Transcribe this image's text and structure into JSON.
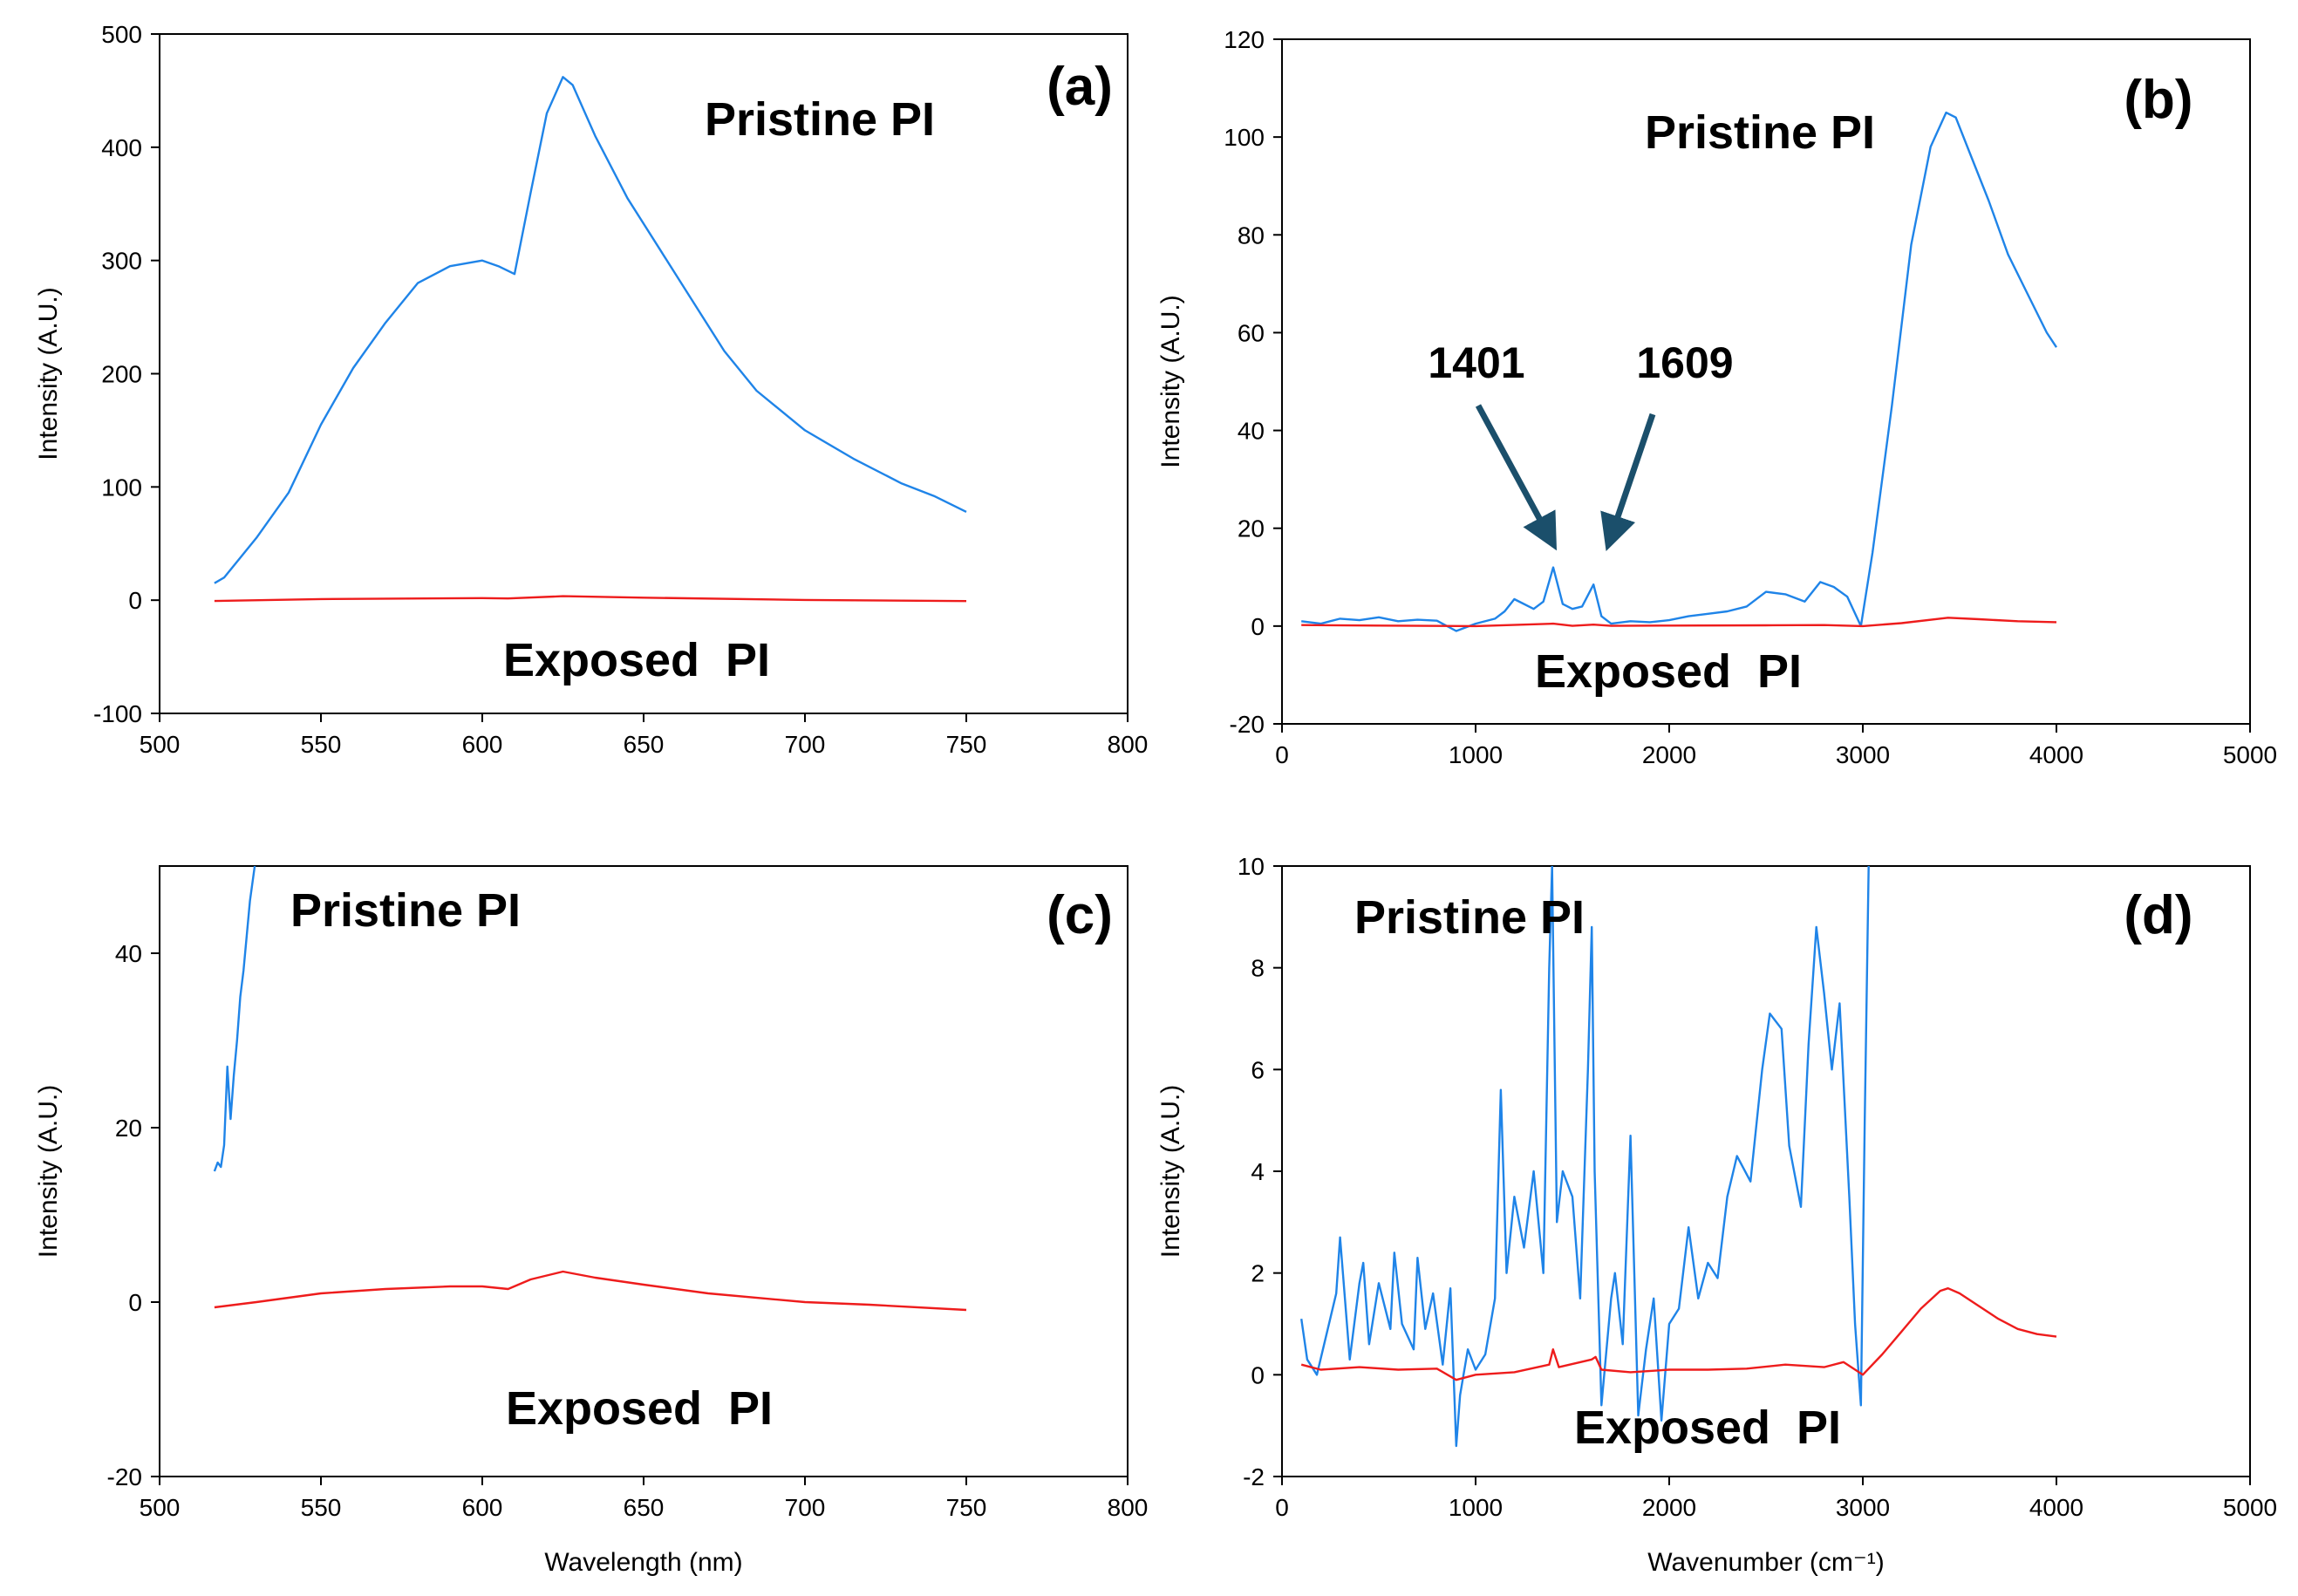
{
  "figure": {
    "colors": {
      "pristine": "#1f84e8",
      "exposed": "#ee1c1c",
      "arrow": "#1b4f6b"
    }
  },
  "chart_data": [
    {
      "panel": "(a)",
      "type": "line",
      "xlim": [
        500,
        800
      ],
      "ylim": [
        -100,
        500
      ],
      "xticks": [
        500,
        550,
        600,
        650,
        700,
        750,
        800
      ],
      "yticks": [
        -100,
        0,
        100,
        200,
        300,
        400,
        500
      ],
      "xlabel": "",
      "ylabel": "Intensity (A.U.)",
      "annotations": [
        "Pristine PI",
        "Exposed  PI"
      ],
      "series": [
        {
          "name": "Pristine PI",
          "color": "#1f84e8",
          "x": [
            517,
            520,
            530,
            540,
            550,
            560,
            570,
            580,
            590,
            600,
            605,
            610,
            615,
            620,
            625,
            628,
            635,
            645,
            655,
            665,
            675,
            685,
            700,
            715,
            730,
            740,
            750
          ],
          "y": [
            15,
            20,
            55,
            95,
            155,
            205,
            245,
            280,
            295,
            300,
            295,
            288,
            360,
            430,
            462,
            455,
            410,
            355,
            310,
            265,
            220,
            185,
            150,
            125,
            103,
            92,
            78
          ]
        },
        {
          "name": "Exposed PI",
          "color": "#ee1c1c",
          "x": [
            517,
            550,
            600,
            608,
            625,
            650,
            700,
            750
          ],
          "y": [
            -0.7,
            1.0,
            1.8,
            1.5,
            3.5,
            2.2,
            0.2,
            -0.8
          ]
        }
      ]
    },
    {
      "panel": "(b)",
      "type": "line",
      "xlim": [
        0,
        5000
      ],
      "ylim": [
        -20,
        120
      ],
      "xticks": [
        0,
        1000,
        2000,
        3000,
        4000,
        5000
      ],
      "yticks": [
        -20,
        0,
        20,
        40,
        60,
        80,
        100,
        120
      ],
      "xlabel": "",
      "ylabel": "Intensity (A.U.)",
      "annotations": [
        "Pristine PI",
        "Exposed  PI"
      ],
      "peaks": [
        {
          "label": "1401",
          "x": 1401
        },
        {
          "label": "1609",
          "x": 1609
        }
      ],
      "series": [
        {
          "name": "Pristine PI",
          "color": "#1f84e8",
          "x": [
            100,
            200,
            300,
            400,
            500,
            600,
            700,
            800,
            900,
            1000,
            1100,
            1150,
            1200,
            1300,
            1350,
            1401,
            1450,
            1500,
            1550,
            1609,
            1650,
            1700,
            1800,
            1900,
            2000,
            2100,
            2200,
            2300,
            2400,
            2500,
            2600,
            2700,
            2780,
            2850,
            2920,
            2990,
            3050,
            3150,
            3250,
            3350,
            3430,
            3480,
            3550,
            3650,
            3750,
            3850,
            3950,
            4000
          ],
          "y": [
            1.0,
            0.5,
            1.5,
            1.2,
            1.8,
            1.0,
            1.3,
            1.1,
            -1.0,
            0.5,
            1.5,
            3.0,
            5.5,
            3.5,
            5.0,
            12.0,
            4.5,
            3.5,
            4.0,
            8.5,
            2.0,
            0.5,
            1.0,
            0.8,
            1.2,
            2.0,
            2.5,
            3.0,
            4.0,
            7.0,
            6.5,
            5.0,
            9.0,
            8.0,
            6.0,
            0.0,
            15,
            45,
            78,
            98,
            105,
            104,
            97,
            87,
            76,
            68,
            60,
            57
          ]
        },
        {
          "name": "Exposed PI",
          "color": "#ee1c1c",
          "x": [
            100,
            500,
            1000,
            1401,
            1500,
            1609,
            1700,
            2000,
            2500,
            2800,
            3000,
            3200,
            3440,
            3600,
            3800,
            4000
          ],
          "y": [
            0.2,
            0.1,
            0.0,
            0.5,
            0.05,
            0.3,
            0.05,
            0.1,
            0.15,
            0.2,
            0.0,
            0.6,
            1.7,
            1.4,
            1.0,
            0.8
          ]
        }
      ]
    },
    {
      "panel": "(c)",
      "type": "line",
      "xlim": [
        500,
        800
      ],
      "ylim": [
        -20,
        50
      ],
      "xticks": [
        500,
        550,
        600,
        650,
        700,
        750,
        800
      ],
      "yticks": [
        -20,
        0,
        20,
        40
      ],
      "xlabel": "Wavelength (nm)",
      "ylabel": "Intensity (A.U.)",
      "annotations": [
        "Pristine PI",
        "Exposed  PI"
      ],
      "series": [
        {
          "name": "Pristine PI",
          "color": "#1f84e8",
          "x": [
            517,
            518,
            519,
            520,
            521,
            522,
            523,
            524,
            525,
            526,
            527,
            528,
            529.5
          ],
          "y": [
            15,
            16,
            15.5,
            18,
            27,
            21,
            26,
            30,
            35,
            38,
            42,
            46,
            50
          ]
        },
        {
          "name": "Exposed PI",
          "color": "#ee1c1c",
          "x": [
            517,
            530,
            550,
            570,
            590,
            600,
            608,
            615,
            625,
            635,
            650,
            670,
            700,
            720,
            750
          ],
          "y": [
            -0.6,
            0.0,
            1.0,
            1.5,
            1.8,
            1.8,
            1.5,
            2.6,
            3.5,
            2.8,
            2.0,
            1.0,
            0.0,
            -0.3,
            -0.9
          ]
        }
      ]
    },
    {
      "panel": "(d)",
      "type": "line",
      "xlim": [
        0,
        5000
      ],
      "ylim": [
        -2,
        10
      ],
      "xticks": [
        0,
        1000,
        2000,
        3000,
        4000,
        5000
      ],
      "yticks": [
        -2,
        0,
        2,
        4,
        6,
        8,
        10
      ],
      "xlabel": "Wavenumber (cm⁻¹)",
      "ylabel": "Intensity (A.U.)",
      "annotations": [
        "Pristine PI",
        "Exposed  PI"
      ],
      "series": [
        {
          "name": "Pristine PI",
          "color": "#1f84e8",
          "x": [
            100,
            130,
            180,
            230,
            280,
            300,
            350,
            400,
            420,
            450,
            500,
            560,
            580,
            620,
            680,
            700,
            740,
            780,
            830,
            870,
            900,
            920,
            960,
            1000,
            1050,
            1100,
            1130,
            1160,
            1200,
            1250,
            1300,
            1350,
            1380,
            1395,
            1420,
            1450,
            1500,
            1540,
            1580,
            1600,
            1615,
            1650,
            1700,
            1720,
            1760,
            1800,
            1840,
            1880,
            1920,
            1960,
            2000,
            2050,
            2100,
            2150,
            2200,
            2250,
            2300,
            2350,
            2420,
            2480,
            2520,
            2580,
            2620,
            2680,
            2720,
            2760,
            2800,
            2840,
            2880,
            2930,
            2960,
            2990,
            3010,
            3030
          ],
          "y": [
            1.1,
            0.3,
            0.0,
            0.8,
            1.6,
            2.7,
            0.3,
            1.8,
            2.2,
            0.6,
            1.8,
            0.9,
            2.4,
            1.0,
            0.5,
            2.3,
            0.9,
            1.6,
            0.2,
            1.7,
            -1.4,
            -0.4,
            0.5,
            0.1,
            0.4,
            1.5,
            5.6,
            2.0,
            3.5,
            2.5,
            4.0,
            2.0,
            8.0,
            10,
            3.0,
            4.0,
            3.5,
            1.5,
            6.0,
            8.8,
            4.0,
            -0.6,
            1.5,
            2.0,
            0.6,
            4.7,
            -0.8,
            0.5,
            1.5,
            -0.9,
            1.0,
            1.3,
            2.9,
            1.5,
            2.2,
            1.9,
            3.5,
            4.3,
            3.8,
            6.0,
            7.1,
            6.8,
            4.5,
            3.3,
            6.5,
            8.8,
            7.5,
            6.0,
            7.3,
            3.5,
            1.0,
            -0.6,
            5.0,
            10
          ]
        },
        {
          "name": "Exposed PI",
          "color": "#ee1c1c",
          "x": [
            100,
            200,
            400,
            600,
            800,
            900,
            1000,
            1200,
            1380,
            1400,
            1430,
            1600,
            1620,
            1650,
            1800,
            2000,
            2200,
            2400,
            2600,
            2800,
            2900,
            3000,
            3100,
            3200,
            3300,
            3400,
            3440,
            3500,
            3600,
            3700,
            3800,
            3900,
            4000
          ],
          "y": [
            0.2,
            0.1,
            0.15,
            0.1,
            0.12,
            -0.1,
            0.0,
            0.05,
            0.2,
            0.5,
            0.15,
            0.3,
            0.35,
            0.1,
            0.05,
            0.1,
            0.1,
            0.12,
            0.2,
            0.15,
            0.25,
            0.0,
            0.4,
            0.85,
            1.3,
            1.65,
            1.7,
            1.6,
            1.35,
            1.1,
            0.9,
            0.8,
            0.75
          ]
        }
      ]
    }
  ]
}
